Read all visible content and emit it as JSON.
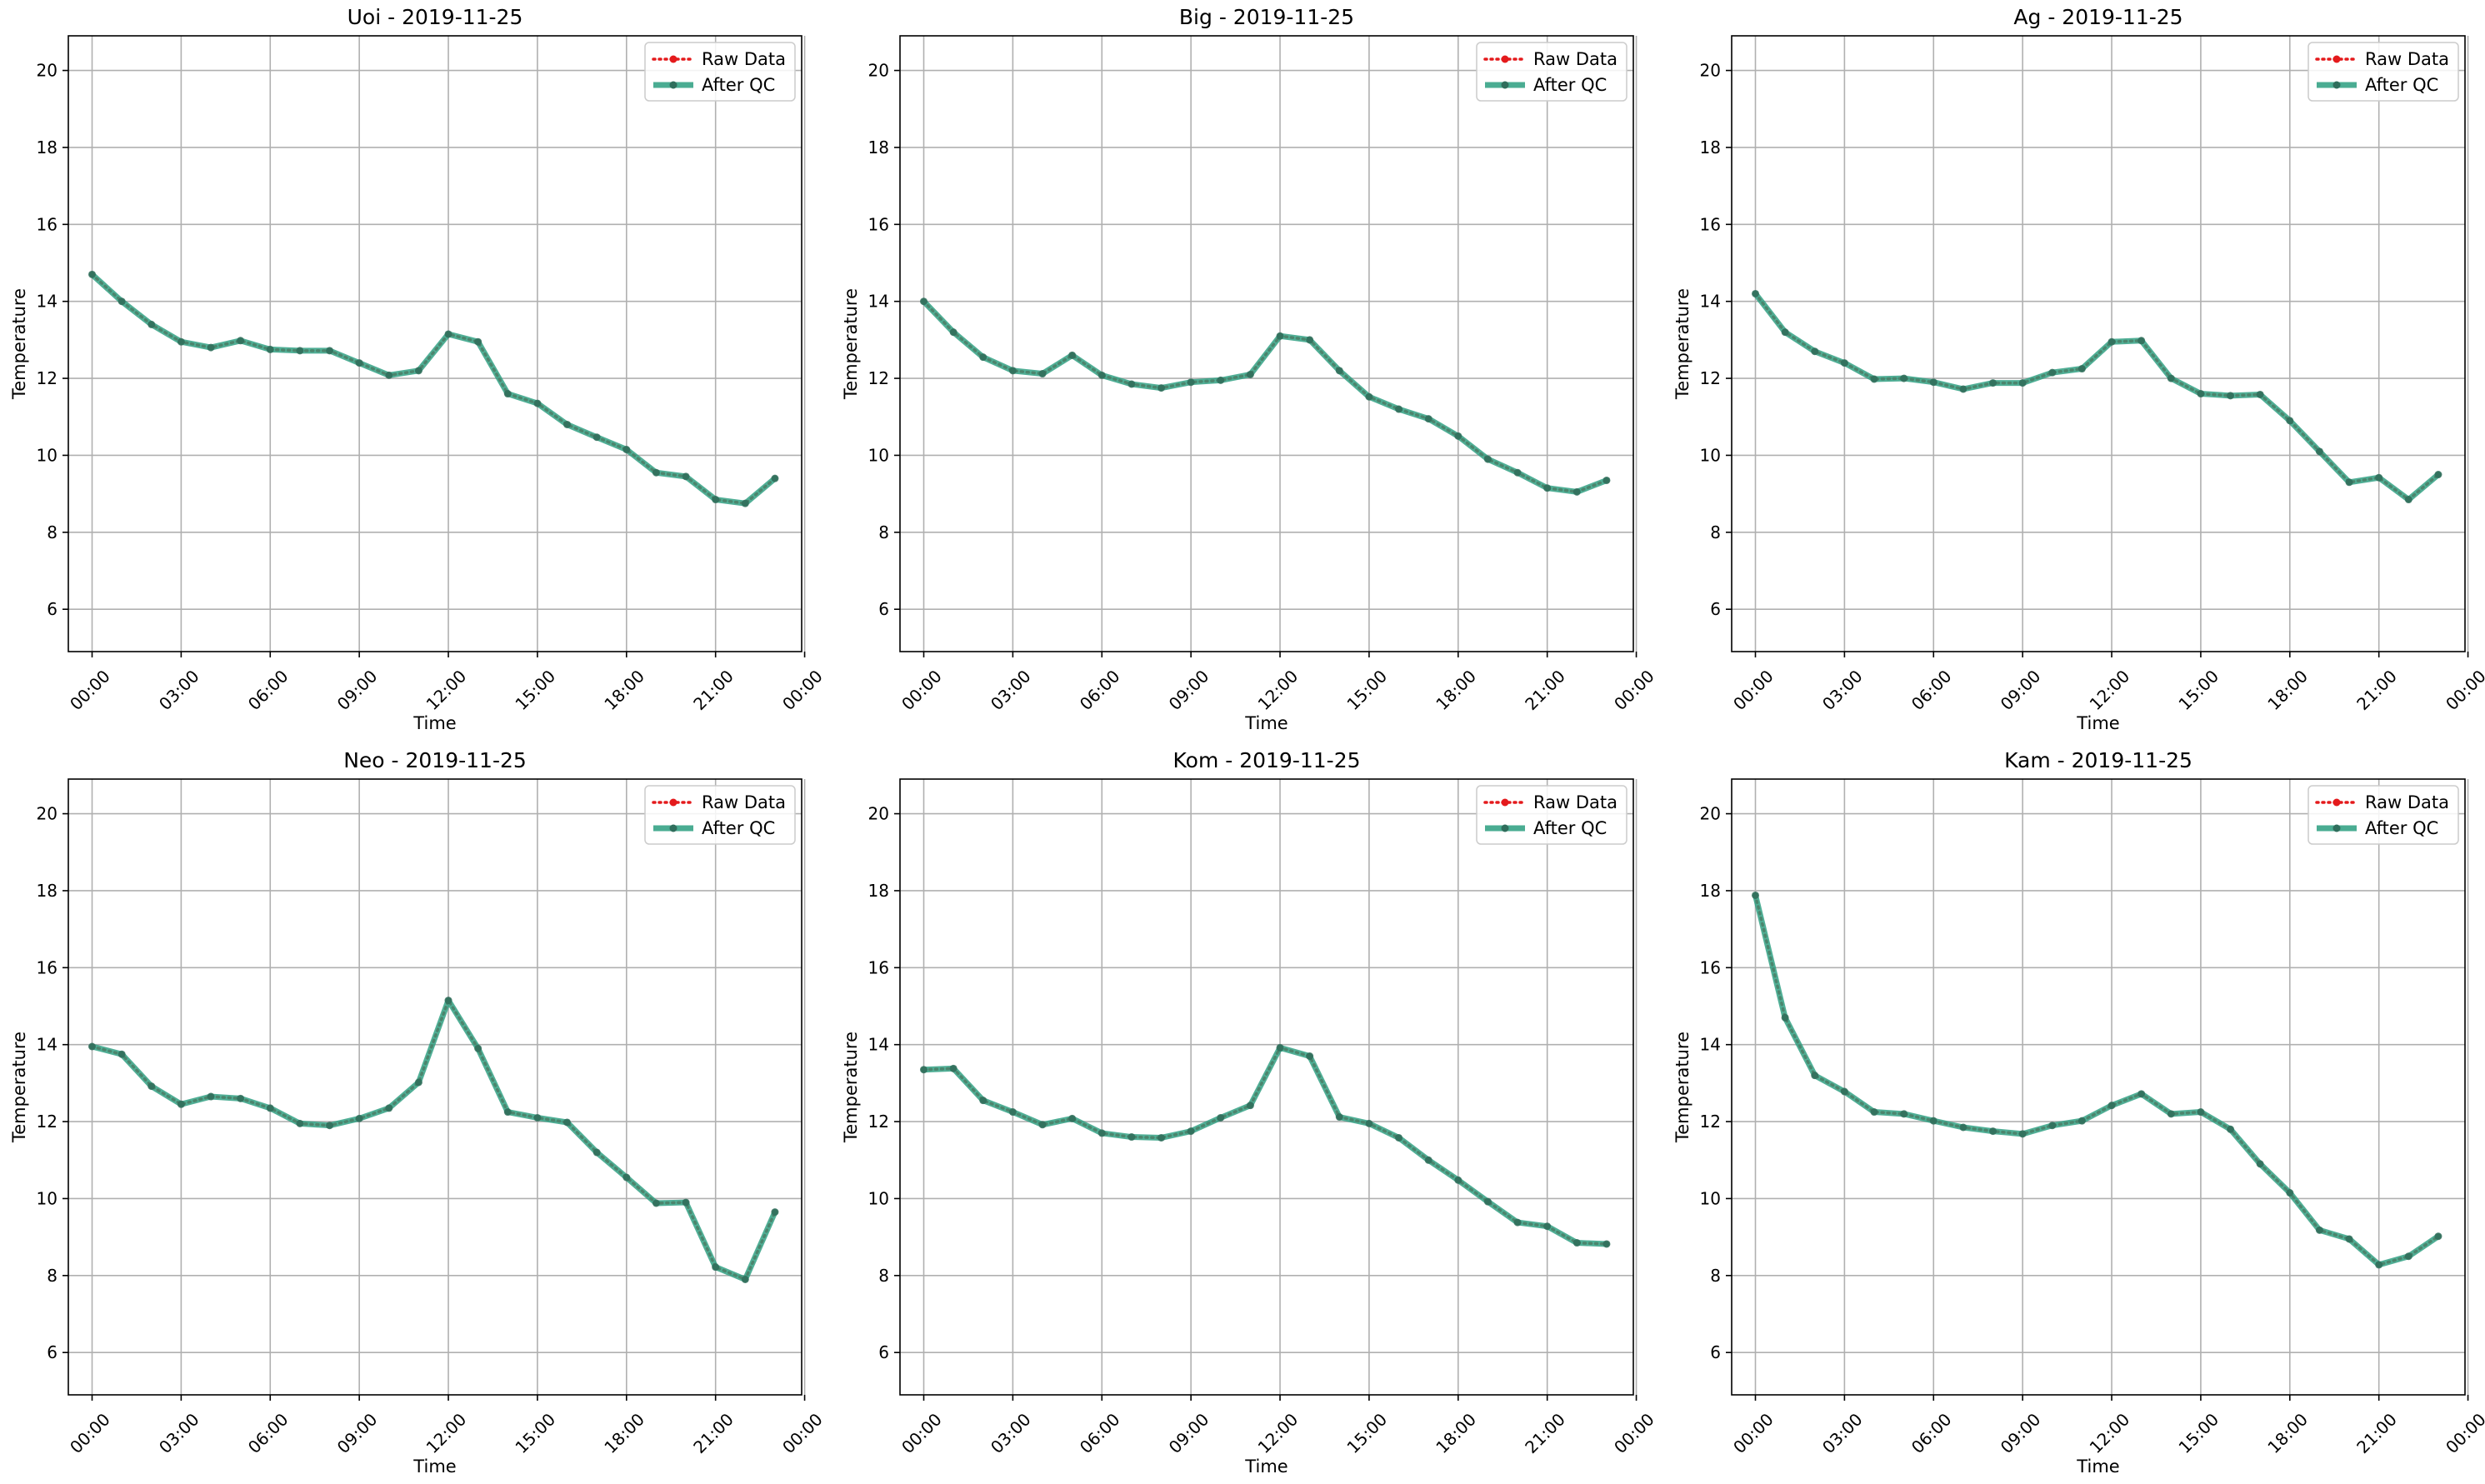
{
  "chart_data": [
    {
      "type": "line",
      "title": "Uoi - 2019-11-25",
      "xlabel": "Time",
      "ylabel": "Temperature",
      "ylim": [
        4.9,
        20.9
      ],
      "yticks": [
        "6",
        "8",
        "10",
        "12",
        "14",
        "16",
        "18",
        "20"
      ],
      "xlim": [
        -0.8,
        23.9
      ],
      "xticks": [
        "00:00",
        "03:00",
        "06:00",
        "09:00",
        "12:00",
        "15:00",
        "18:00",
        "21:00",
        "00:00"
      ],
      "grid": true,
      "legend": "top-right",
      "series": [
        {
          "name": "Raw Data",
          "color": "#e41a1c",
          "style": "dotted",
          "values": [
            14.7,
            14.0,
            13.4,
            12.95,
            12.8,
            12.98,
            12.75,
            12.72,
            12.72,
            12.4,
            12.08,
            12.2,
            13.15,
            12.95,
            11.6,
            11.35,
            10.8,
            10.47,
            10.15,
            9.55,
            9.45,
            8.85,
            8.75,
            9.4
          ]
        },
        {
          "name": "After QC",
          "color": "#2a9d7f",
          "style": "solid",
          "values": [
            14.7,
            14.0,
            13.4,
            12.95,
            12.8,
            12.98,
            12.75,
            12.72,
            12.72,
            12.4,
            12.08,
            12.2,
            13.15,
            12.95,
            11.6,
            11.35,
            10.8,
            10.47,
            10.15,
            9.55,
            9.45,
            8.85,
            8.75,
            9.4
          ]
        }
      ]
    },
    {
      "type": "line",
      "title": "Big - 2019-11-25",
      "xlabel": "Time",
      "ylabel": "Temperature",
      "ylim": [
        4.9,
        20.9
      ],
      "yticks": [
        "6",
        "8",
        "10",
        "12",
        "14",
        "16",
        "18",
        "20"
      ],
      "xlim": [
        -0.8,
        23.9
      ],
      "xticks": [
        "00:00",
        "03:00",
        "06:00",
        "09:00",
        "12:00",
        "15:00",
        "18:00",
        "21:00",
        "00:00"
      ],
      "grid": true,
      "legend": "top-right",
      "series": [
        {
          "name": "Raw Data",
          "color": "#e41a1c",
          "style": "dotted",
          "values": [
            14.0,
            13.2,
            12.55,
            12.2,
            12.12,
            12.6,
            12.08,
            11.85,
            11.75,
            11.9,
            11.95,
            12.1,
            13.1,
            13.0,
            12.2,
            11.52,
            11.2,
            10.95,
            10.5,
            9.9,
            9.55,
            9.15,
            9.05,
            9.35
          ]
        },
        {
          "name": "After QC",
          "color": "#2a9d7f",
          "style": "solid",
          "values": [
            14.0,
            13.2,
            12.55,
            12.2,
            12.12,
            12.6,
            12.08,
            11.85,
            11.75,
            11.9,
            11.95,
            12.1,
            13.1,
            13.0,
            12.2,
            11.52,
            11.2,
            10.95,
            10.5,
            9.9,
            9.55,
            9.15,
            9.05,
            9.35
          ]
        }
      ]
    },
    {
      "type": "line",
      "title": "Ag - 2019-11-25",
      "xlabel": "Time",
      "ylabel": "Temperature",
      "ylim": [
        4.9,
        20.9
      ],
      "yticks": [
        "6",
        "8",
        "10",
        "12",
        "14",
        "16",
        "18",
        "20"
      ],
      "xlim": [
        -0.8,
        23.9
      ],
      "xticks": [
        "00:00",
        "03:00",
        "06:00",
        "09:00",
        "12:00",
        "15:00",
        "18:00",
        "21:00",
        "00:00"
      ],
      "grid": true,
      "legend": "top-right",
      "series": [
        {
          "name": "Raw Data",
          "color": "#e41a1c",
          "style": "dotted",
          "values": [
            14.2,
            13.2,
            12.7,
            12.4,
            11.98,
            12.0,
            11.9,
            11.72,
            11.88,
            11.88,
            12.15,
            12.25,
            12.95,
            12.98,
            12.0,
            11.6,
            11.55,
            11.58,
            10.9,
            10.1,
            9.3,
            9.42,
            8.85,
            9.5
          ]
        },
        {
          "name": "After QC",
          "color": "#2a9d7f",
          "style": "solid",
          "values": [
            14.2,
            13.2,
            12.7,
            12.4,
            11.98,
            12.0,
            11.9,
            11.72,
            11.88,
            11.88,
            12.15,
            12.25,
            12.95,
            12.98,
            12.0,
            11.6,
            11.55,
            11.58,
            10.9,
            10.1,
            9.3,
            9.42,
            8.85,
            9.5
          ]
        }
      ]
    },
    {
      "type": "line",
      "title": "Neo - 2019-11-25",
      "xlabel": "Time",
      "ylabel": "Temperature",
      "ylim": [
        4.9,
        20.9
      ],
      "yticks": [
        "6",
        "8",
        "10",
        "12",
        "14",
        "16",
        "18",
        "20"
      ],
      "xlim": [
        -0.8,
        23.9
      ],
      "xticks": [
        "00:00",
        "03:00",
        "06:00",
        "09:00",
        "12:00",
        "15:00",
        "18:00",
        "21:00",
        "00:00"
      ],
      "grid": true,
      "legend": "top-right",
      "series": [
        {
          "name": "Raw Data",
          "color": "#e41a1c",
          "style": "dotted",
          "values": [
            13.95,
            13.75,
            12.92,
            12.45,
            12.65,
            12.6,
            12.35,
            11.95,
            11.9,
            12.08,
            12.35,
            13.02,
            15.15,
            13.9,
            12.25,
            12.1,
            11.98,
            11.2,
            10.55,
            9.88,
            9.9,
            8.22,
            7.9,
            9.65
          ]
        },
        {
          "name": "After QC",
          "color": "#2a9d7f",
          "style": "solid",
          "values": [
            13.95,
            13.75,
            12.92,
            12.45,
            12.65,
            12.6,
            12.35,
            11.95,
            11.9,
            12.08,
            12.35,
            13.02,
            15.15,
            13.9,
            12.25,
            12.1,
            11.98,
            11.2,
            10.55,
            9.88,
            9.9,
            8.22,
            7.9,
            9.65
          ]
        }
      ]
    },
    {
      "type": "line",
      "title": "Kom - 2019-11-25",
      "xlabel": "Time",
      "ylabel": "Temperature",
      "ylim": [
        4.9,
        20.9
      ],
      "yticks": [
        "6",
        "8",
        "10",
        "12",
        "14",
        "16",
        "18",
        "20"
      ],
      "xlim": [
        -0.8,
        23.9
      ],
      "xticks": [
        "00:00",
        "03:00",
        "06:00",
        "09:00",
        "12:00",
        "15:00",
        "18:00",
        "21:00",
        "00:00"
      ],
      "grid": true,
      "legend": "top-right",
      "series": [
        {
          "name": "Raw Data",
          "color": "#e41a1c",
          "style": "dotted",
          "values": [
            13.35,
            13.38,
            12.55,
            12.25,
            11.92,
            12.08,
            11.7,
            11.6,
            11.58,
            11.75,
            12.1,
            12.42,
            13.92,
            13.7,
            12.12,
            11.95,
            11.58,
            11.0,
            10.48,
            9.92,
            9.38,
            9.28,
            8.85,
            8.82
          ]
        },
        {
          "name": "After QC",
          "color": "#2a9d7f",
          "style": "solid",
          "values": [
            13.35,
            13.38,
            12.55,
            12.25,
            11.92,
            12.08,
            11.7,
            11.6,
            11.58,
            11.75,
            12.1,
            12.42,
            13.92,
            13.7,
            12.12,
            11.95,
            11.58,
            11.0,
            10.48,
            9.92,
            9.38,
            9.28,
            8.85,
            8.82
          ]
        }
      ]
    },
    {
      "type": "line",
      "title": "Kam - 2019-11-25",
      "xlabel": "Time",
      "ylabel": "Temperature",
      "ylim": [
        4.9,
        20.9
      ],
      "yticks": [
        "6",
        "8",
        "10",
        "12",
        "14",
        "16",
        "18",
        "20"
      ],
      "xlim": [
        -0.8,
        23.9
      ],
      "xticks": [
        "00:00",
        "03:00",
        "06:00",
        "09:00",
        "12:00",
        "15:00",
        "18:00",
        "21:00",
        "00:00"
      ],
      "grid": true,
      "legend": "top-right",
      "series": [
        {
          "name": "Raw Data",
          "color": "#e41a1c",
          "style": "dotted",
          "values": [
            17.88,
            14.7,
            13.2,
            12.78,
            12.25,
            12.2,
            12.02,
            11.85,
            11.75,
            11.68,
            11.9,
            12.02,
            12.42,
            12.72,
            12.2,
            12.25,
            11.8,
            10.9,
            10.15,
            9.18,
            8.95,
            8.28,
            8.5,
            9.02
          ]
        },
        {
          "name": "After QC",
          "color": "#2a9d7f",
          "style": "solid",
          "values": [
            17.88,
            14.7,
            13.2,
            12.78,
            12.25,
            12.2,
            12.02,
            11.85,
            11.75,
            11.68,
            11.9,
            12.02,
            12.42,
            12.72,
            12.2,
            12.25,
            11.8,
            10.9,
            10.15,
            9.18,
            8.95,
            8.28,
            8.5,
            9.02
          ]
        }
      ]
    }
  ]
}
